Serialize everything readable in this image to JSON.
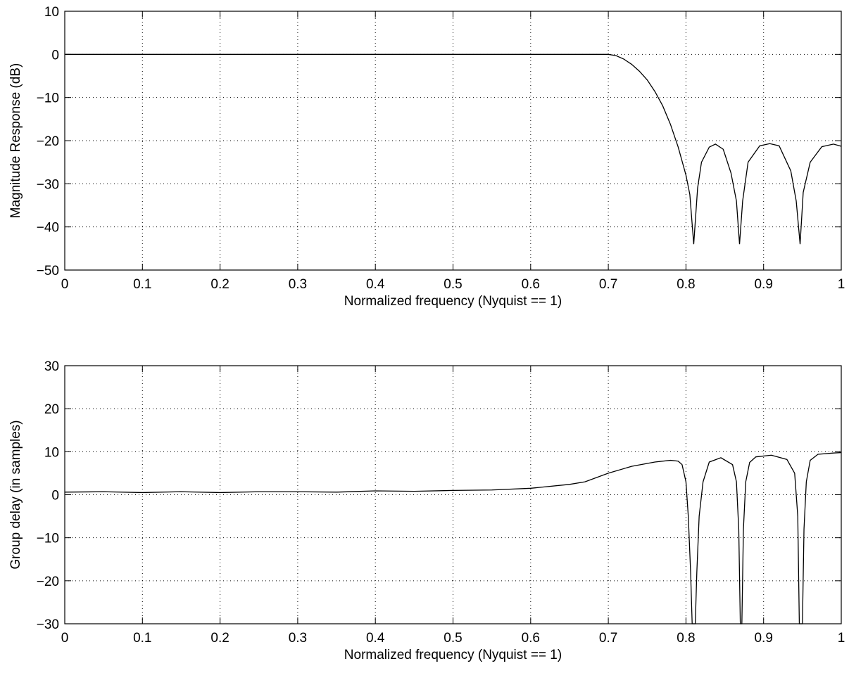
{
  "chart_data": [
    {
      "type": "line",
      "xlabel": "Normalized frequency (Nyquist == 1)",
      "ylabel": "Magnitude Response (dB)",
      "xlim": [
        0,
        1
      ],
      "ylim": [
        -50,
        10
      ],
      "xticks": [
        0,
        0.1,
        0.2,
        0.3,
        0.4,
        0.5,
        0.6,
        0.7,
        0.8,
        0.9,
        1
      ],
      "xtick_labels": [
        "0",
        "0.1",
        "0.2",
        "0.3",
        "0.4",
        "0.5",
        "0.6",
        "0.7",
        "0.8",
        "0.9",
        "1"
      ],
      "yticks": [
        -50,
        -40,
        -30,
        -20,
        -10,
        0,
        10
      ],
      "ytick_labels": [
        "−50",
        "−40",
        "−30",
        "−20",
        "−10",
        "0",
        "10"
      ],
      "grid": true,
      "series": [
        {
          "x": [
            0,
            0.1,
            0.2,
            0.3,
            0.4,
            0.5,
            0.6,
            0.65,
            0.7,
            0.71,
            0.72,
            0.73,
            0.74,
            0.75,
            0.76,
            0.77,
            0.78,
            0.79,
            0.8,
            0.805,
            0.81,
            0.815,
            0.82,
            0.83,
            0.838,
            0.848,
            0.858,
            0.865,
            0.869,
            0.873,
            0.88,
            0.895,
            0.908,
            0.92,
            0.935,
            0.942,
            0.947,
            0.951,
            0.96,
            0.975,
            0.99,
            1.0
          ],
          "y": [
            0,
            0,
            0,
            0,
            0,
            0,
            0,
            0,
            0,
            -0.3,
            -1.1,
            -2.3,
            -3.9,
            -5.9,
            -8.6,
            -11.9,
            -16.2,
            -21.5,
            -28.0,
            -32.5,
            -44.0,
            -31.0,
            -25.0,
            -21.5,
            -20.8,
            -22.0,
            -27.5,
            -34.0,
            -44.0,
            -34.0,
            -25.0,
            -21.2,
            -20.7,
            -21.2,
            -27.0,
            -34.0,
            -44.0,
            -32.0,
            -25.0,
            -21.4,
            -20.8,
            -21.3
          ]
        }
      ]
    },
    {
      "type": "line",
      "xlabel": "Normalized frequency (Nyquist == 1)",
      "ylabel": "Group delay (in samples)",
      "xlim": [
        0,
        1
      ],
      "ylim": [
        -30,
        30
      ],
      "xticks": [
        0,
        0.1,
        0.2,
        0.3,
        0.4,
        0.5,
        0.6,
        0.7,
        0.8,
        0.9,
        1
      ],
      "xtick_labels": [
        "0",
        "0.1",
        "0.2",
        "0.3",
        "0.4",
        "0.5",
        "0.6",
        "0.7",
        "0.8",
        "0.9",
        "1"
      ],
      "yticks": [
        -30,
        -20,
        -10,
        0,
        10,
        20,
        30
      ],
      "ytick_labels": [
        "−30",
        "−20",
        "−10",
        "0",
        "10",
        "20",
        "30"
      ],
      "grid": true,
      "series": [
        {
          "x": [
            0,
            0.05,
            0.1,
            0.15,
            0.2,
            0.25,
            0.3,
            0.35,
            0.4,
            0.45,
            0.5,
            0.55,
            0.6,
            0.65,
            0.67,
            0.7,
            0.73,
            0.76,
            0.78,
            0.79,
            0.795,
            0.8,
            0.803,
            0.806,
            0.808,
            0.81,
            0.812,
            0.814,
            0.817,
            0.822,
            0.83,
            0.845,
            0.86,
            0.865,
            0.868,
            0.87,
            0.872,
            0.874,
            0.877,
            0.882,
            0.89,
            0.91,
            0.93,
            0.94,
            0.944,
            0.946,
            0.948,
            0.95,
            0.952,
            0.955,
            0.96,
            0.97,
            0.99,
            1.0
          ],
          "y": [
            0.6,
            0.7,
            0.5,
            0.7,
            0.5,
            0.7,
            0.7,
            0.6,
            0.9,
            0.8,
            1.0,
            1.1,
            1.5,
            2.4,
            3.0,
            5.0,
            6.6,
            7.6,
            8.0,
            7.8,
            7.0,
            3.0,
            -5.0,
            -18.0,
            -30.0,
            -30.0,
            -30.0,
            -18.0,
            -5.0,
            3.0,
            7.6,
            8.6,
            7.0,
            3.0,
            -8.0,
            -30.0,
            -30.0,
            -8.0,
            3.0,
            7.5,
            8.8,
            9.2,
            8.2,
            5.0,
            -5.0,
            -30.0,
            -30.0,
            -30.0,
            -8.0,
            3.0,
            8.0,
            9.4,
            9.7,
            9.8
          ]
        }
      ]
    }
  ]
}
